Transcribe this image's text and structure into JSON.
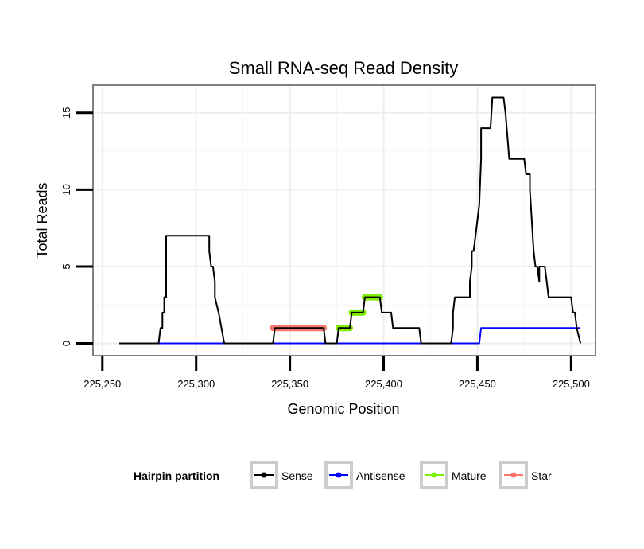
{
  "chart_data": {
    "type": "line",
    "title": "Small RNA-seq Read Density",
    "xlabel": "Genomic Position",
    "ylabel": "Total Reads",
    "xlim": [
      225245,
      225513
    ],
    "ylim": [
      -0.8,
      16.8
    ],
    "x_ticks": [
      225250,
      225300,
      225350,
      225400,
      225450,
      225500
    ],
    "x_tick_labels": [
      "225,250",
      "225,300",
      "225,350",
      "225,400",
      "225,450",
      "225,500"
    ],
    "y_ticks": [
      0,
      5,
      10,
      15
    ],
    "y_tick_labels": [
      "0",
      "5",
      "10",
      "15"
    ],
    "grid": true,
    "legend": {
      "title": "Hairpin partition",
      "position": "bottom",
      "entries": [
        "Sense",
        "Antisense",
        "Mature",
        "Star"
      ]
    },
    "series": [
      {
        "name": "Sense",
        "color": "#000000",
        "x": [
          225259,
          225280,
          225281,
          225282,
          225282,
          225283,
          225283,
          225284,
          225284,
          225307,
          225307,
          225308,
          225309,
          225310,
          225310,
          225312,
          225315,
          225341,
          225342,
          225368,
          225369,
          225375,
          225376,
          225382,
          225383,
          225389,
          225390,
          225398,
          225399,
          225404,
          225405,
          225408,
          225409,
          225419,
          225420,
          225436,
          225437,
          225437,
          225438,
          225440,
          225441,
          225446,
          225446,
          225447,
          225447,
          225448,
          225449,
          225451,
          225452,
          225452,
          225457,
          225458,
          225464,
          225465,
          225467,
          225468,
          225475,
          225476,
          225478,
          225478,
          225480,
          225481,
          225482,
          225483,
          225483,
          225486,
          225487,
          225487,
          225488,
          225489,
          225500,
          225501,
          225502,
          225503,
          225505
        ],
        "values": [
          0,
          0,
          1,
          1,
          2,
          2,
          3,
          3,
          7,
          7,
          6,
          5,
          5,
          4,
          3,
          2,
          0,
          0,
          1,
          1,
          0,
          0,
          1,
          1,
          2,
          2,
          3,
          3,
          2,
          2,
          1,
          1,
          1,
          1,
          0,
          0,
          1,
          2,
          3,
          3,
          3,
          3,
          4,
          5,
          6,
          6,
          7,
          9,
          12,
          14,
          14,
          16,
          16,
          15,
          12,
          12,
          12,
          11,
          11,
          10,
          6,
          5,
          5,
          4,
          5,
          5,
          4,
          4,
          3,
          3,
          3,
          2,
          2,
          1,
          0
        ]
      },
      {
        "name": "Antisense",
        "color": "#0000ff",
        "x": [
          225259,
          225451,
          225452,
          225505
        ],
        "values": [
          0,
          0,
          1,
          1
        ]
      }
    ],
    "segments": [
      {
        "name": "Star",
        "color": "#f8766d",
        "x": [
          225341,
          225368
        ],
        "value": 1
      },
      {
        "name": "Mature",
        "color": "#7cee00",
        "x": [
          225376,
          225382
        ],
        "value": 1
      },
      {
        "name": "Mature",
        "color": "#7cee00",
        "x": [
          225383,
          225389
        ],
        "value": 2
      },
      {
        "name": "Mature",
        "color": "#7cee00",
        "x": [
          225390,
          225398
        ],
        "value": 3
      }
    ],
    "legend_colors": {
      "Sense": "#000000",
      "Antisense": "#0000ff",
      "Mature": "#7cee00",
      "Star": "#f8766d"
    }
  }
}
